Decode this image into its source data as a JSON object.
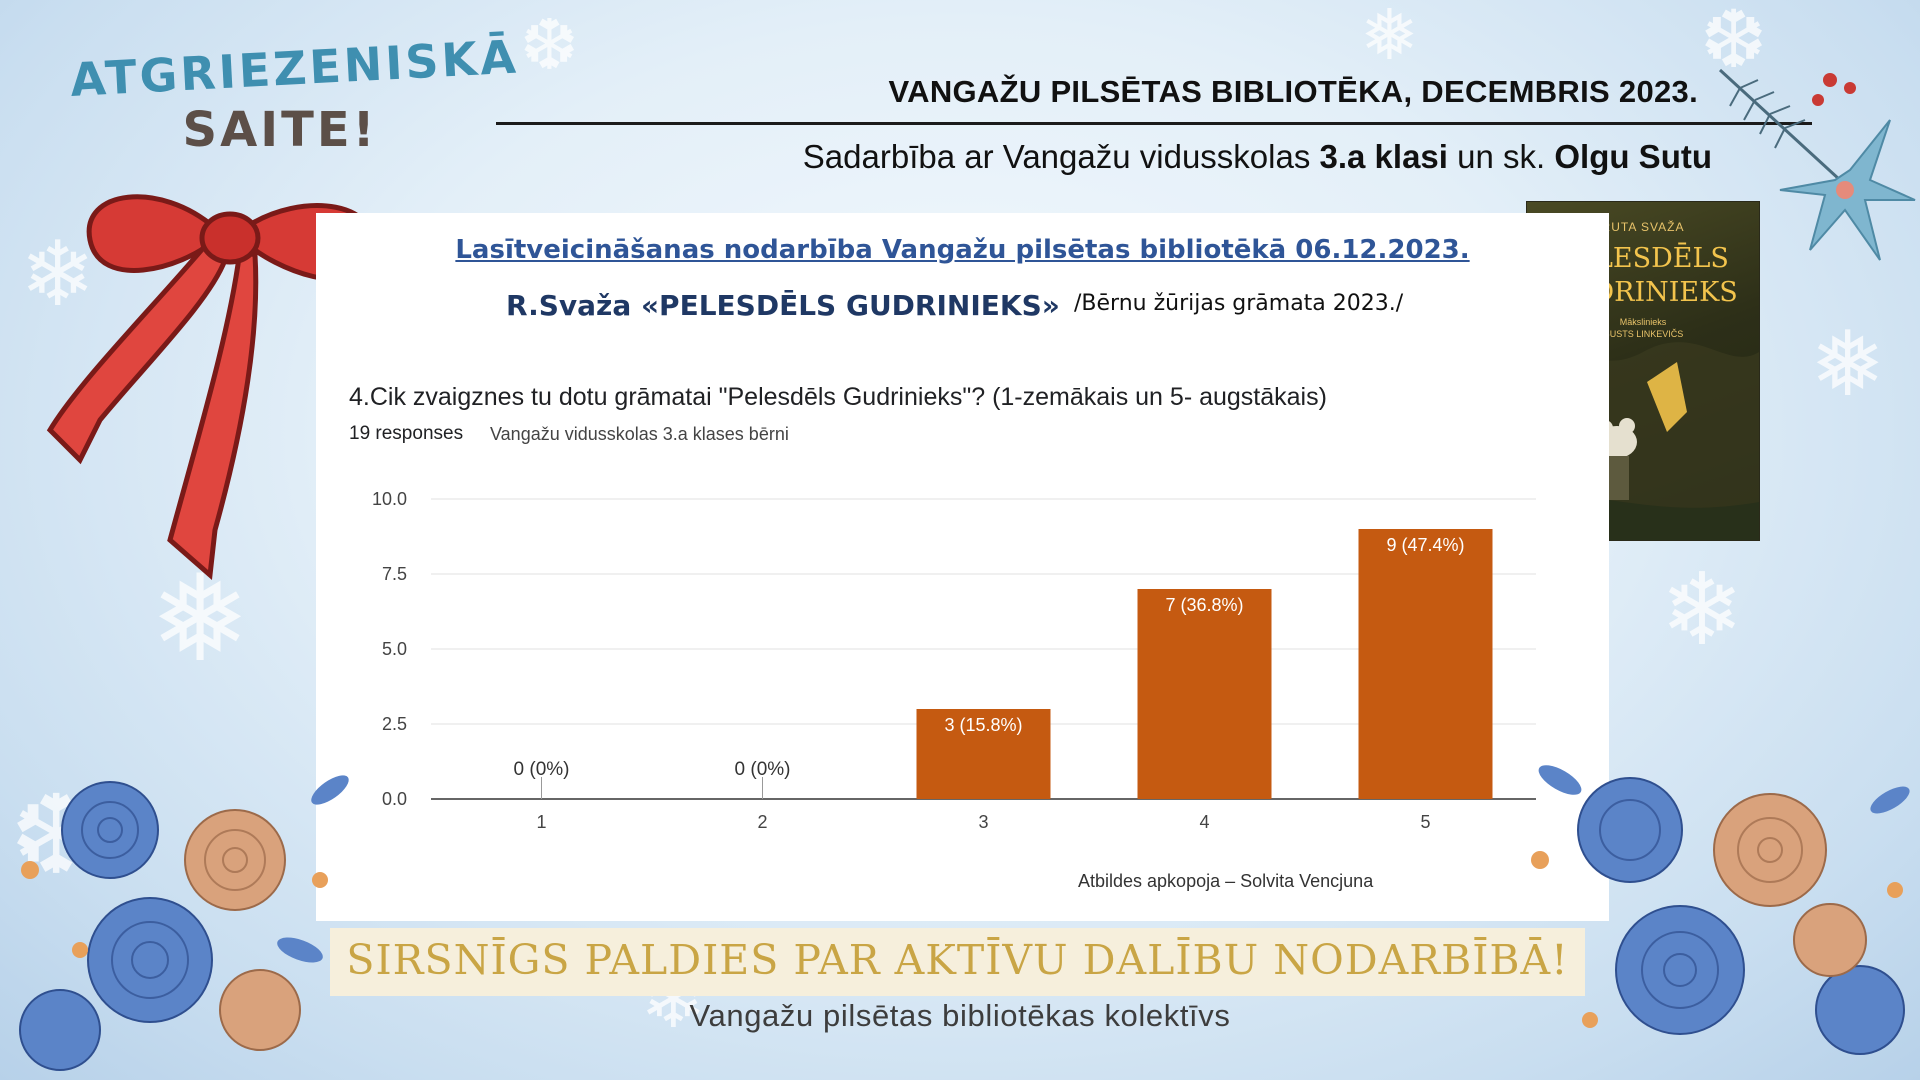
{
  "header": {
    "badge_line1": "ATGRIEZENISKĀ",
    "badge_line2": "SAITE!",
    "org_line": "VANGAŽU PILSĒTAS BIBLIOTĒKA, DECEMBRIS 2023.",
    "collab_prefix": "Sadarbība ar Vangažu vidusskolas ",
    "collab_class": "3.a klasi",
    "collab_mid": " un sk. ",
    "collab_teacher": "Olgu Sutu"
  },
  "panel": {
    "activity_title": "Lasītveicināšanas nodarbība Vangažu pilsētas bibliotēkā 06.12.2023.",
    "book_line": "R.Svaža «PELESDĒLS GUDRINIEKS»",
    "book_note": "/Bērnu žūrijas grāmata 2023./",
    "question": "4.Cik zvaigznes tu dotu grāmatai \"Pelesdēls Gudrinieks\"? (1-zemākais un 5- augstākais)",
    "responses": "19 responses",
    "audience": "Vangažu vidusskolas 3.a klases bērni",
    "credit": "Atbildes apkopoja – Solvita Vencjuna"
  },
  "cover": {
    "author": "RUTA SVAŽA",
    "title_line1": "PELESDĒLS",
    "title_line2": "GUDRINIEKS",
    "illustrator_line1": "Mākslinieks",
    "illustrator_line2": "GUSTS LINKEVIČS"
  },
  "footer": {
    "thanks": "SIRSNĪGS PALDIES PAR AKTĪVU DALĪBU NODARBĪBĀ!",
    "team": "Vangažu pilsētas bibliotēkas kolektīvs"
  },
  "colors": {
    "bar": "#c55a11",
    "bow": "#d63a35",
    "flower_blue": "#5b84c8",
    "flower_peach": "#d9a27c"
  },
  "chart_data": {
    "type": "bar",
    "categories": [
      "1",
      "2",
      "3",
      "4",
      "5"
    ],
    "values": [
      0,
      0,
      3,
      7,
      9
    ],
    "labels": [
      "0 (0%)",
      "0 (0%)",
      "3 (15.8%)",
      "7 (36.8%)",
      "9 (47.4%)"
    ],
    "yticks": [
      "0.0",
      "2.5",
      "5.0",
      "7.5",
      "10.0"
    ],
    "ylim": [
      0,
      10
    ],
    "grid": true
  }
}
